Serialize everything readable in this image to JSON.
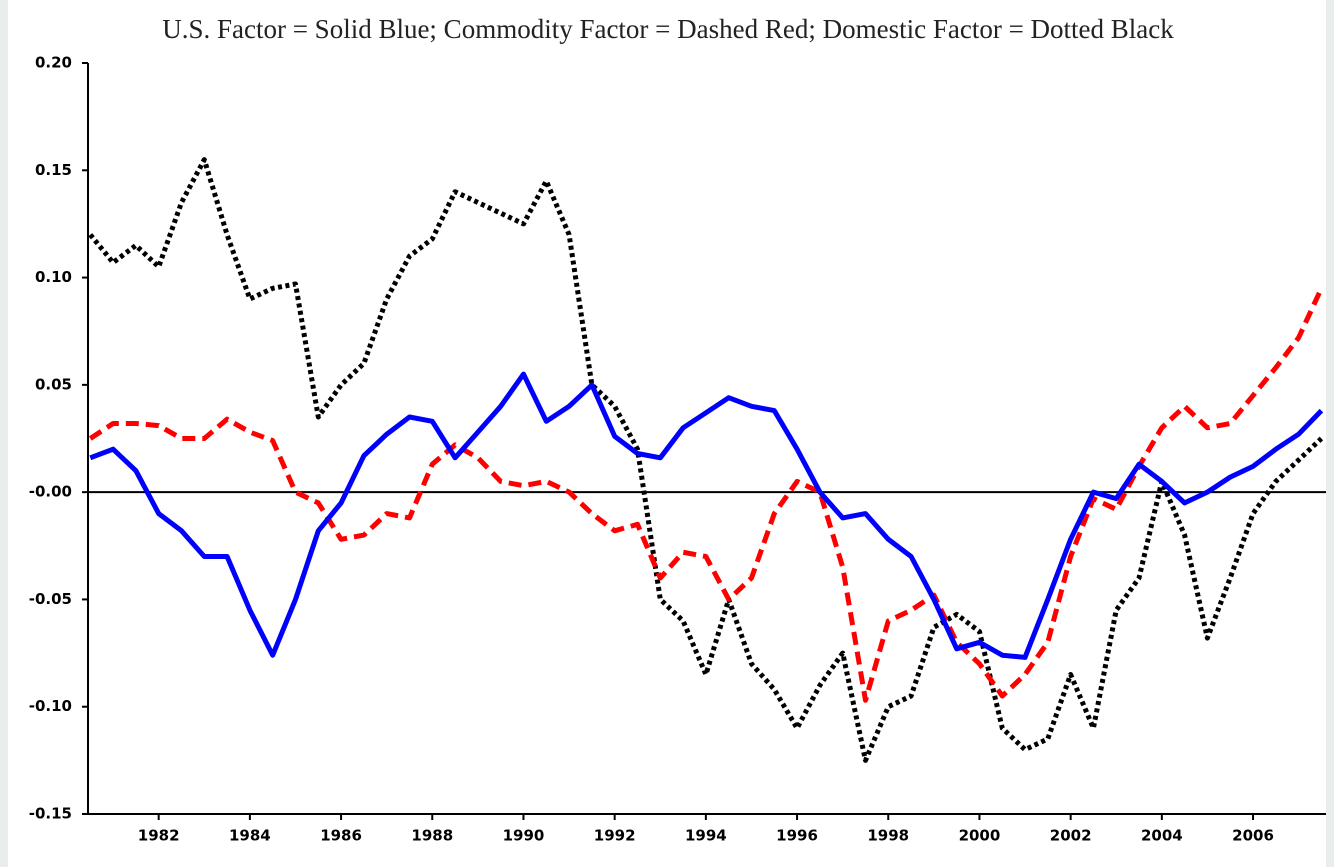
{
  "chart_data": {
    "type": "line",
    "title": "U.S. Factor = Solid Blue; Commodity Factor = Dashed Red; Domestic Factor = Dotted Black",
    "x": [
      1980.5,
      1981,
      1981.5,
      1982,
      1982.5,
      1983,
      1983.5,
      1984,
      1984.5,
      1985,
      1985.5,
      1986,
      1986.5,
      1987,
      1987.5,
      1988,
      1988.5,
      1989,
      1989.5,
      1990,
      1990.5,
      1991,
      1991.5,
      1992,
      1992.5,
      1993,
      1993.5,
      1994,
      1994.5,
      1995,
      1995.5,
      1996,
      1996.5,
      1997,
      1997.5,
      1998,
      1998.5,
      1999,
      1999.5,
      2000,
      2000.5,
      2001,
      2001.5,
      2002,
      2002.5,
      2003,
      2003.5,
      2004,
      2004.5,
      2005,
      2005.5,
      2006,
      2006.5,
      2007,
      2007.5
    ],
    "series": [
      {
        "color": "#0000ff",
        "linestyle": "solid",
        "values": [
          0.016,
          0.02,
          0.01,
          -0.01,
          -0.018,
          -0.03,
          -0.03,
          -0.055,
          -0.076,
          -0.05,
          -0.018,
          -0.005,
          0.017,
          0.027,
          0.035,
          0.033,
          0.016,
          0.028,
          0.04,
          0.055,
          0.033,
          0.04,
          0.05,
          0.026,
          0.018,
          0.016,
          0.03,
          0.037,
          0.044,
          0.04,
          0.038,
          0.02,
          0.0,
          -0.012,
          -0.01,
          -0.022,
          -0.03,
          -0.05,
          -0.073,
          -0.07,
          -0.076,
          -0.077,
          -0.05,
          -0.022,
          0.0,
          -0.003,
          0.013,
          0.005,
          -0.005,
          0.0,
          0.007,
          0.012,
          0.02,
          0.027,
          0.038
        ]
      },
      {
        "color": "#ff0000",
        "linestyle": "dashed",
        "values": [
          0.025,
          0.032,
          0.032,
          0.031,
          0.025,
          0.025,
          0.034,
          0.028,
          0.024,
          0.0,
          -0.005,
          -0.022,
          -0.02,
          -0.01,
          -0.012,
          0.013,
          0.022,
          0.016,
          0.005,
          0.003,
          0.005,
          0.0,
          -0.01,
          -0.018,
          -0.015,
          -0.04,
          -0.028,
          -0.03,
          -0.05,
          -0.04,
          -0.01,
          0.005,
          0.0,
          -0.035,
          -0.097,
          -0.06,
          -0.055,
          -0.048,
          -0.07,
          -0.08,
          -0.095,
          -0.085,
          -0.07,
          -0.03,
          -0.003,
          -0.008,
          0.012,
          0.03,
          0.04,
          0.03,
          0.032,
          0.045,
          0.058,
          0.072,
          0.095
        ]
      },
      {
        "color": "#000000",
        "linestyle": "dotted",
        "values": [
          0.12,
          0.107,
          0.115,
          0.105,
          0.135,
          0.155,
          0.12,
          0.09,
          0.095,
          0.097,
          0.035,
          0.05,
          0.06,
          0.09,
          0.11,
          0.118,
          0.14,
          0.135,
          0.13,
          0.125,
          0.145,
          0.12,
          0.05,
          0.04,
          0.02,
          -0.05,
          -0.06,
          -0.085,
          -0.05,
          -0.08,
          -0.092,
          -0.11,
          -0.09,
          -0.075,
          -0.125,
          -0.1,
          -0.095,
          -0.063,
          -0.057,
          -0.065,
          -0.11,
          -0.12,
          -0.115,
          -0.085,
          -0.11,
          -0.055,
          -0.04,
          0.005,
          -0.02,
          -0.068,
          -0.04,
          -0.01,
          0.005,
          0.015,
          0.025
        ]
      }
    ],
    "xlim": [
      1980.45,
      2007.6
    ],
    "xticks": [
      1982,
      1984,
      1986,
      1988,
      1990,
      1992,
      1994,
      1996,
      1998,
      2000,
      2002,
      2004,
      2006
    ],
    "ylim": [
      -0.15,
      0.2
    ],
    "yticks": [
      {
        "value": -0.15,
        "label": "-0.15"
      },
      {
        "value": -0.1,
        "label": "-0.10"
      },
      {
        "value": -0.05,
        "label": "-0.05"
      },
      {
        "value": 0,
        "label": "-0.00"
      },
      {
        "value": 0.05,
        "label": "0.05"
      },
      {
        "value": 0.1,
        "label": "0.10"
      },
      {
        "value": 0.15,
        "label": "0.15"
      },
      {
        "value": 0.2,
        "label": "0.20"
      }
    ],
    "zero_line": true
  }
}
